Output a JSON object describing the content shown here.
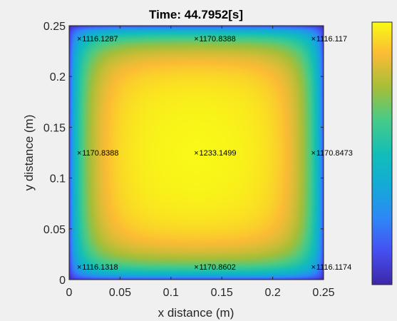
{
  "chart_data": {
    "type": "heatmap",
    "title": "Time: 44.7952[s]",
    "xlabel": "x distance (m)",
    "ylabel": "y distance (m)",
    "xlim": [
      0,
      0.25
    ],
    "ylim": [
      0,
      0.25
    ],
    "xticks": [
      "0",
      "0.05",
      "0.1",
      "0.15",
      "0.2",
      "0.25"
    ],
    "xtick_values": [
      0,
      0.05,
      0.1,
      0.15,
      0.2,
      0.25
    ],
    "yticks": [
      "0",
      "0.05",
      "0.1",
      "0.15",
      "0.2",
      "0.25"
    ],
    "ytick_values": [
      0,
      0.05,
      0.1,
      0.15,
      0.2,
      0.25
    ],
    "grid": false,
    "colormap": "parula",
    "colorbar": true,
    "colors": {
      "low": "#3e26a8",
      "mid": "#13beb8",
      "high": "#f9fb15"
    },
    "annotations": [
      {
        "x": 0.01,
        "y": 0.2375,
        "label": "1116.1287"
      },
      {
        "x": 0.125,
        "y": 0.2375,
        "label": "1170.8388"
      },
      {
        "x": 0.24,
        "y": 0.2375,
        "label": "1116.117"
      },
      {
        "x": 0.01,
        "y": 0.125,
        "label": "1170.8388"
      },
      {
        "x": 0.125,
        "y": 0.125,
        "label": "1233.1499"
      },
      {
        "x": 0.24,
        "y": 0.125,
        "label": "1170.8473"
      },
      {
        "x": 0.01,
        "y": 0.0125,
        "label": "1116.1318"
      },
      {
        "x": 0.125,
        "y": 0.0125,
        "label": "1170.8602"
      },
      {
        "x": 0.24,
        "y": 0.0125,
        "label": "1116.1174"
      }
    ]
  }
}
